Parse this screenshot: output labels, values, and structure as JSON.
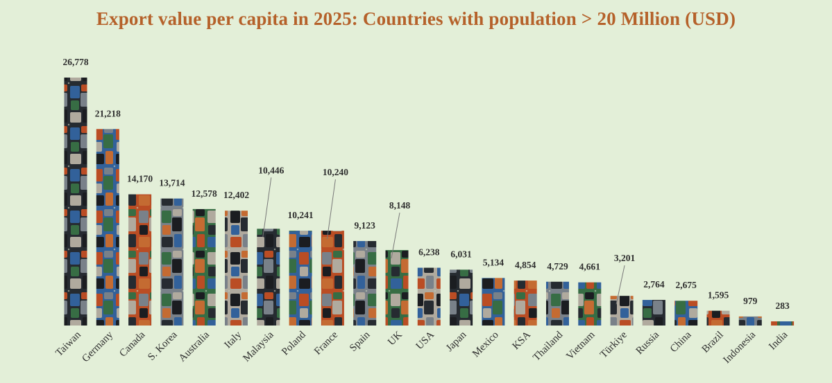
{
  "chart_data": {
    "type": "bar",
    "title": "Export value per capita in 2025: Countries with population > 20 Million (USD)",
    "categories": [
      "Taiwan",
      "Germany",
      "Canada",
      "S. Korea",
      "Australia",
      "Italy",
      "Malaysia",
      "Poland",
      "France",
      "Spain",
      "UK",
      "USA",
      "Japan",
      "Mexico",
      "KSA",
      "Thailand",
      "Vietnam",
      "Türkiye",
      "Russia",
      "China",
      "Brazil",
      "Indonesia",
      "India"
    ],
    "values": [
      26778,
      21218,
      14170,
      13714,
      12578,
      12402,
      10446,
      10241,
      10240,
      9123,
      8148,
      6238,
      6031,
      5134,
      4854,
      4729,
      4661,
      3201,
      2764,
      2675,
      1595,
      979,
      283
    ],
    "data_labels": [
      "26,778",
      "21,218",
      "14,170",
      "13,714",
      "12,578",
      "12,402",
      "10,446",
      "10,241",
      "10,240",
      "9,123",
      "8,148",
      "6,238",
      "6,031",
      "5,134",
      "4,854",
      "4,729",
      "4,661",
      "3,201",
      "2,764",
      "2,675",
      "1,595",
      "979",
      "283"
    ],
    "callout_labels": [
      "Malaysia",
      "France",
      "UK",
      "Türkiye"
    ],
    "ylim": [
      0,
      26778
    ],
    "grid": false,
    "legend": "none",
    "colors": {
      "background": "#e3efd8",
      "title": "#b5612a",
      "text": "#2e2e2e",
      "bar_palette": [
        "#2c3138",
        "#3a6fb0",
        "#d4582a",
        "#8a939c",
        "#3f7d4e",
        "#c9c2b4",
        "#1f2226",
        "#e07a3a"
      ]
    }
  }
}
